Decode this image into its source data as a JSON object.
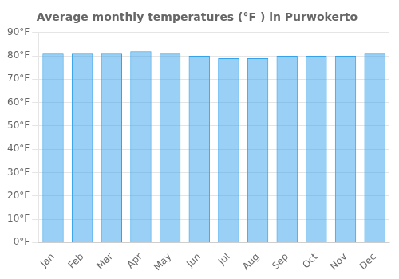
{
  "chart_data": {
    "type": "bar",
    "title": "Average monthly temperatures (°F ) in Purwokerto",
    "categories": [
      "Jan",
      "Feb",
      "Mar",
      "Apr",
      "May",
      "Jun",
      "Jul",
      "Aug",
      "Sep",
      "Oct",
      "Nov",
      "Dec"
    ],
    "values": [
      81,
      81,
      81,
      82,
      81,
      80,
      79,
      79,
      80,
      80,
      80,
      81
    ],
    "ylim": [
      0,
      90
    ],
    "yticks": [
      {
        "value": 0,
        "label": "0°F"
      },
      {
        "value": 10,
        "label": "10°F"
      },
      {
        "value": 20,
        "label": "20°F"
      },
      {
        "value": 30,
        "label": "30°F"
      },
      {
        "value": 40,
        "label": "40°F"
      },
      {
        "value": 50,
        "label": "50°F"
      },
      {
        "value": 60,
        "label": "60°F"
      },
      {
        "value": 70,
        "label": "70°F"
      },
      {
        "value": 80,
        "label": "80°F"
      },
      {
        "value": 90,
        "label": "90°F"
      }
    ],
    "grid": true
  }
}
